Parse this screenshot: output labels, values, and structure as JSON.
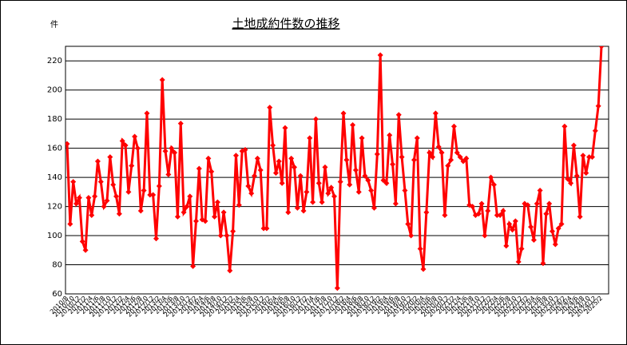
{
  "chart_data": {
    "type": "line",
    "title": "土地成約件数の推移",
    "y_label": "件",
    "categories": [
      "2010/8",
      null,
      "2010/10",
      null,
      "2010/12",
      null,
      "2011/2",
      null,
      "2011/4",
      null,
      "2011/6",
      null,
      "2011/8",
      null,
      "2011/10",
      null,
      "2011/12",
      null,
      "2012/2",
      null,
      "2012/4",
      null,
      "2012/6",
      null,
      "2012/8",
      null,
      "2012/10",
      null,
      "2012/12",
      null,
      "2013/2",
      null,
      "2013/4",
      null,
      "2013/6",
      null,
      "2013/8",
      null,
      "2013/10",
      null,
      "2013/12",
      null,
      "2014/2",
      null,
      "2014/4",
      null,
      "2014/6",
      null,
      "2014/8",
      null,
      "2014/10",
      null,
      "2014/12",
      null,
      "2015/2",
      null,
      "2015/4",
      null,
      "2015/6",
      null,
      "2015/8",
      null,
      "2015/10",
      null,
      "2015/12",
      null,
      "2016/2",
      null,
      "2016/4",
      null,
      "2016/6",
      null,
      "2016/8",
      null,
      "2016/10",
      null,
      "2016/12",
      null,
      "2017/2",
      null,
      "2017/4",
      null,
      "2017/6",
      null,
      "2017/8",
      null,
      "2017/10",
      null,
      "2017/12",
      null,
      "2018/2",
      null,
      "2018/4",
      null,
      "2018/6",
      null,
      "2018/8",
      null,
      "2018/10",
      null,
      "2018/12",
      null,
      "2019/2",
      null,
      "2019/4",
      null,
      "2019/6",
      null,
      "2019/8",
      null,
      "2019/10",
      null,
      "2019/12",
      null,
      "2020/2",
      null,
      "2020/4",
      null,
      "2020/6",
      null,
      "2020/8",
      null,
      "2020/10",
      null,
      "2020/12",
      null,
      "2021/2",
      null,
      "2021/4",
      null,
      "2021/6",
      null,
      "2021/8",
      null,
      "2021/10",
      null,
      "2021/12",
      null,
      "2022/2",
      null,
      "2022/4",
      null,
      "2022/6",
      null,
      "2022/8",
      null,
      "2022/10",
      null,
      "2022/12",
      null,
      "2023/2",
      null,
      "2023/4",
      null,
      "2023/6",
      null,
      "2023/8",
      null,
      "2023/10",
      null,
      "2023/12",
      null,
      "2024/2",
      null,
      "2024/4",
      null,
      "2024/6",
      null,
      "2024/8",
      null,
      "2024/10",
      null,
      "2024/12",
      null,
      "2025/2"
    ],
    "values": [
      163,
      108,
      137,
      122,
      126,
      96,
      90,
      126,
      114,
      127,
      151,
      137,
      120,
      124,
      154,
      135,
      127,
      115,
      165,
      162,
      130,
      148,
      168,
      160,
      117,
      131,
      184,
      128,
      128,
      98,
      134,
      207,
      158,
      142,
      160,
      157,
      113,
      177,
      116,
      120,
      127,
      79,
      110,
      146,
      111,
      110,
      153,
      144,
      113,
      123,
      100,
      116,
      100,
      76,
      103,
      155,
      121,
      158,
      159,
      134,
      129,
      141,
      153,
      145,
      105,
      105,
      188,
      162,
      143,
      151,
      136,
      174,
      116,
      153,
      147,
      119,
      141,
      117,
      130,
      167,
      123,
      180,
      136,
      123,
      147,
      129,
      133,
      127,
      64,
      137,
      184,
      152,
      135,
      176,
      145,
      130,
      167,
      141,
      138,
      131,
      119,
      156,
      224,
      138,
      136,
      169,
      149,
      122,
      183,
      154,
      131,
      108,
      100,
      152,
      167,
      91,
      77,
      116,
      157,
      154,
      184,
      161,
      157,
      114,
      148,
      152,
      175,
      157,
      154,
      151,
      153,
      121,
      120,
      114,
      115,
      122,
      100,
      117,
      140,
      135,
      114,
      114,
      117,
      93,
      108,
      104,
      110,
      82,
      91,
      122,
      121,
      106,
      97,
      122,
      131,
      81,
      115,
      122,
      103,
      94,
      105,
      108,
      175,
      139,
      136,
      162,
      141,
      113,
      155,
      143,
      154,
      154,
      172,
      189,
      230
    ],
    "color": "#ff0000",
    "ylim": [
      60,
      230
    ],
    "yticks": [
      60,
      80,
      100,
      120,
      140,
      160,
      180,
      200,
      220
    ],
    "grid": true
  }
}
